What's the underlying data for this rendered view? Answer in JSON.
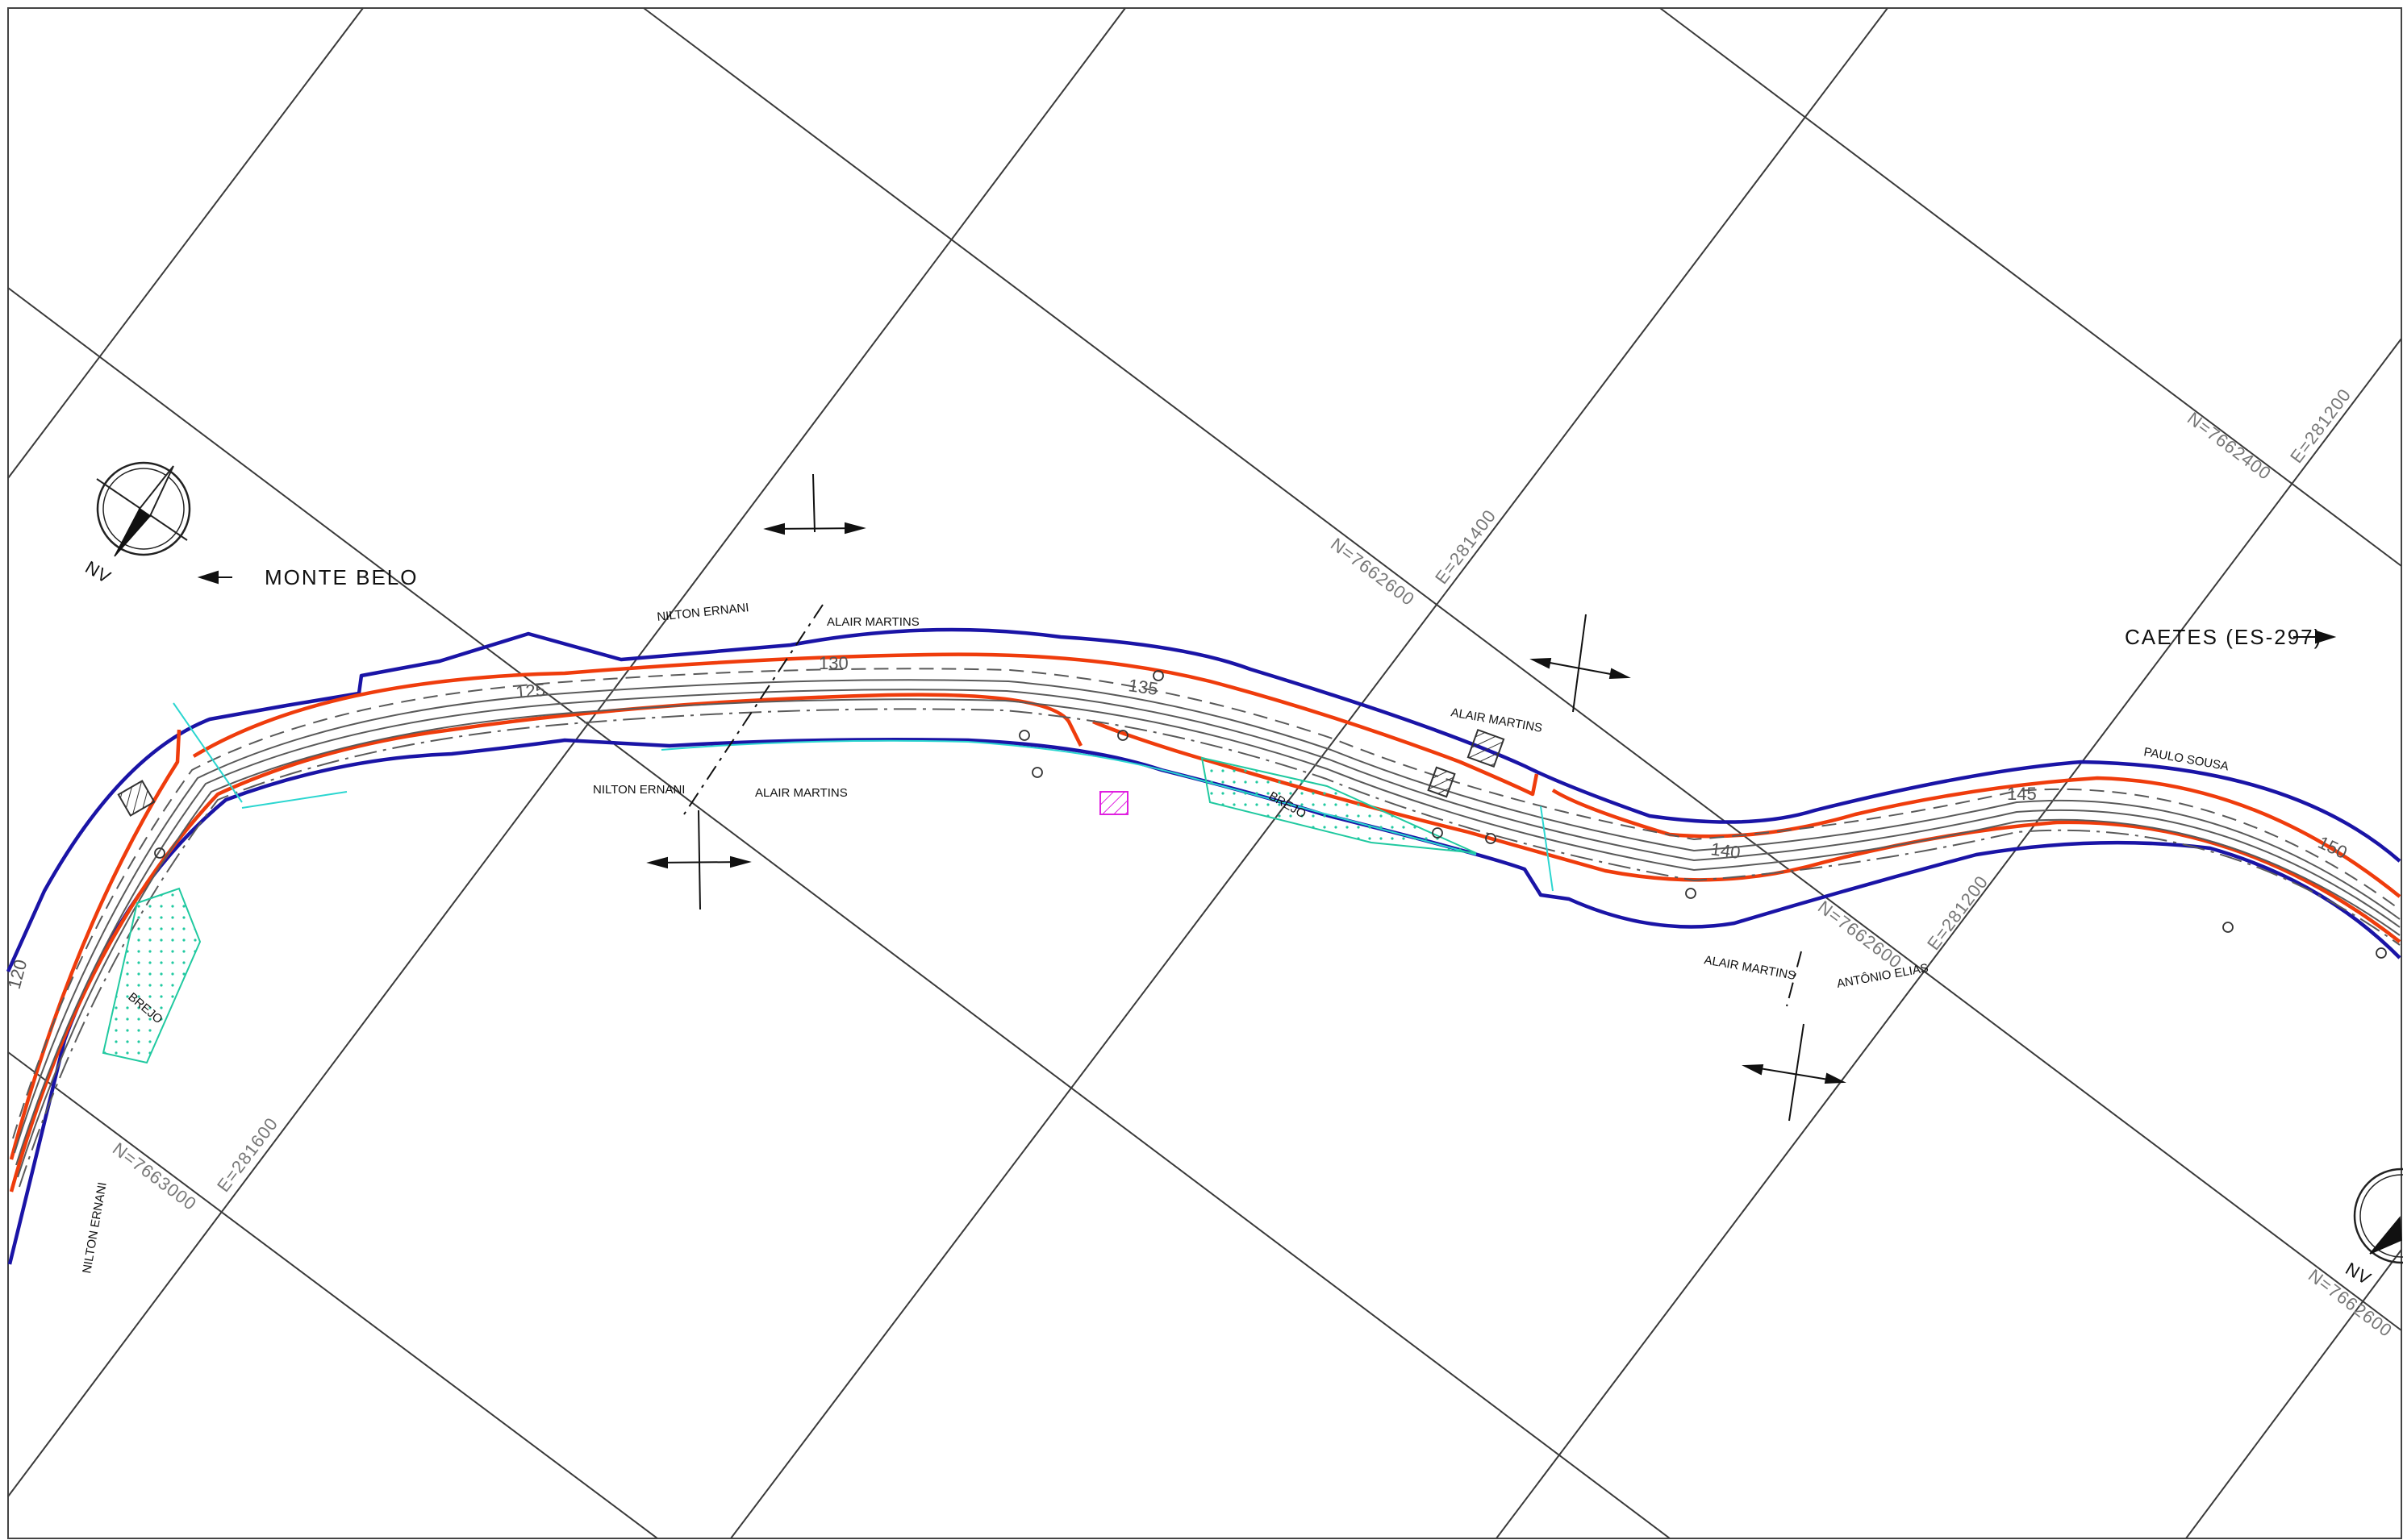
{
  "map": {
    "places": {
      "west": "MONTE BELO",
      "east": "CAETES (ES-297)"
    },
    "north_label": "NV",
    "stations": [
      "120",
      "125",
      "130",
      "135",
      "140",
      "145",
      "150"
    ],
    "grid_labels": [
      "N=7662600",
      "E=281400",
      "N=7662400",
      "E=281200",
      "N=7662600",
      "E=281200",
      "N=7663000",
      "E=281600",
      "N=7662600"
    ],
    "owners": [
      "NILTON ERNANI",
      "ALAIR MARTINS",
      "NILTON ERNANI",
      "ALAIR MARTINS",
      "ALAIR MARTINS",
      "PAULO SOUSA",
      "ALAIR MARTINS",
      "ANTÔNIO ELIAS",
      "NILTON ERNANI"
    ],
    "wetland_labels": [
      "BREJO",
      "BREJO"
    ],
    "colors": {
      "grid": "#3a3a3a",
      "road": "#5a5a5a",
      "offset": "#ef3c0c",
      "boundary": "#1a14a6",
      "wetland": "#20c9a0",
      "drainage": "#2bd6d0",
      "building": "#e020e0"
    }
  }
}
